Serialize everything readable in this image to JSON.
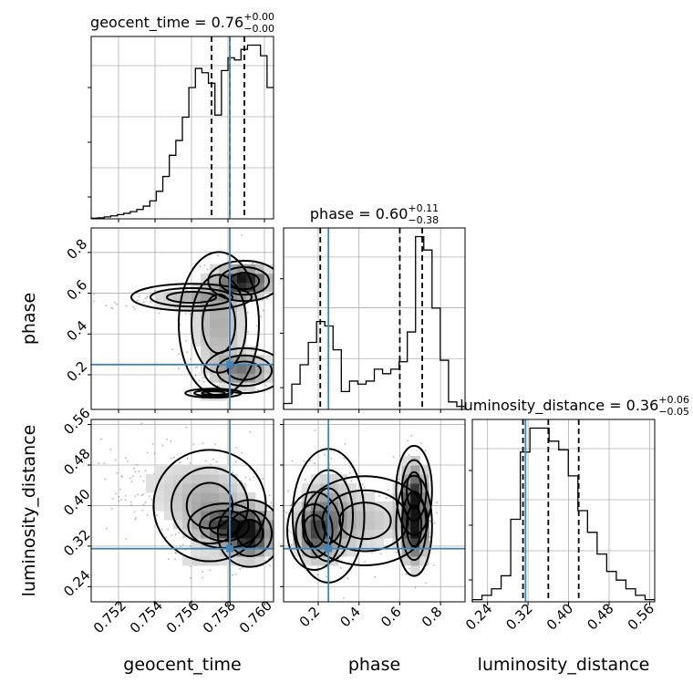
{
  "chart_data": {
    "type": "corner",
    "colors": {
      "truth": "#4682b4",
      "contour": "#000000",
      "samples": "#555555",
      "grid": "#b0b0b0"
    },
    "params": [
      {
        "name": "geocent_time",
        "title_main": "geocent_time = 0.76",
        "title_plus": "+0.00",
        "title_minus": "−0.00",
        "range": [
          0.7505,
          0.7605
        ],
        "ticks": [
          0.752,
          0.754,
          0.756,
          0.758,
          0.76
        ],
        "tick_labels": [
          "0.752",
          "0.754",
          "0.756",
          "0.758",
          "0.760"
        ],
        "truth": 0.7581,
        "quantiles": [
          0.7571,
          0.7581,
          0.7589
        ],
        "hist": [
          0.3,
          0.5,
          0.9,
          1.4,
          2.0,
          2.6,
          3.4,
          4.4,
          6.0,
          8.5,
          13,
          20,
          30,
          37,
          48,
          62,
          71,
          69,
          64,
          49,
          70,
          76,
          75,
          80,
          82,
          82,
          77,
          62
        ]
      },
      {
        "name": "phase",
        "title_main": "phase = 0.60",
        "title_plus": "+0.11",
        "title_minus": "−0.38",
        "range": [
          0.03,
          0.92
        ],
        "ticks": [
          0.2,
          0.4,
          0.6,
          0.8
        ],
        "tick_labels": [
          "0.2",
          "0.4",
          "0.6",
          "0.8"
        ],
        "truth": 0.25,
        "quantiles": [
          0.21,
          0.6,
          0.71
        ],
        "hist": [
          4,
          17,
          30,
          45,
          59,
          56,
          40,
          12,
          19,
          17,
          19,
          27,
          24,
          27,
          32,
          52,
          116,
          107,
          68,
          33,
          5,
          2
        ]
      },
      {
        "name": "luminosity_distance",
        "title_main": "luminosity_distance = 0.36",
        "title_plus": "+0.06",
        "title_minus": "−0.05",
        "range": [
          0.21,
          0.57
        ],
        "ticks": [
          0.24,
          0.32,
          0.4,
          0.48,
          0.56
        ],
        "tick_labels": [
          "0.24",
          "0.32",
          "0.40",
          "0.48",
          "0.56"
        ],
        "truth": 0.315,
        "quantiles": [
          0.31,
          0.36,
          0.42
        ],
        "hist": [
          1,
          3,
          6,
          12,
          38,
          69,
          80,
          80,
          74,
          70,
          58,
          42,
          32,
          22,
          14,
          10,
          6,
          3,
          1
        ]
      }
    ],
    "ylabel_ticks": {
      "phase": {
        "ticks": [
          0.2,
          0.4,
          0.6,
          0.8
        ],
        "tick_labels": [
          "0.2",
          "0.4",
          "0.6",
          "0.8"
        ]
      },
      "luminosity_distance": {
        "ticks": [
          0.24,
          0.32,
          0.4,
          0.48,
          0.56
        ],
        "tick_labels": [
          "0.24",
          "0.32",
          "0.40",
          "0.48",
          "0.56"
        ]
      }
    },
    "grid": true
  }
}
